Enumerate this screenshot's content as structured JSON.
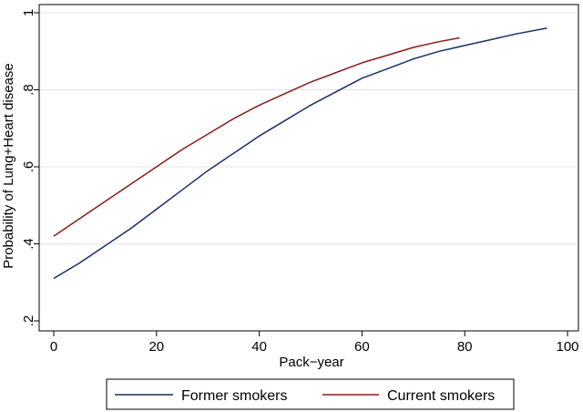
{
  "chart_data": {
    "type": "line",
    "title": "",
    "xlabel": "Pack−year",
    "ylabel": "Probability of Lung+Heart disease",
    "xlim": [
      0,
      100
    ],
    "ylim": [
      0.2,
      1.0
    ],
    "xticks": [
      0,
      20,
      40,
      60,
      80,
      100
    ],
    "yticks": [
      0.2,
      0.4,
      0.6,
      0.8,
      1.0
    ],
    "xtick_labels": [
      "0",
      "20",
      "40",
      "60",
      "80",
      "100"
    ],
    "ytick_labels": [
      ".2",
      ".4",
      ".6",
      ".8",
      "1"
    ],
    "grid": "horizontal",
    "legend_position": "bottom",
    "series": [
      {
        "name": "Former smokers",
        "color": "#1a2d6b",
        "points": [
          [
            0,
            0.31
          ],
          [
            5,
            0.35
          ],
          [
            10,
            0.395
          ],
          [
            15,
            0.44
          ],
          [
            20,
            0.49
          ],
          [
            25,
            0.54
          ],
          [
            30,
            0.59
          ],
          [
            35,
            0.635
          ],
          [
            40,
            0.68
          ],
          [
            45,
            0.72
          ],
          [
            50,
            0.76
          ],
          [
            55,
            0.795
          ],
          [
            60,
            0.83
          ],
          [
            65,
            0.855
          ],
          [
            70,
            0.88
          ],
          [
            75,
            0.9
          ],
          [
            80,
            0.915
          ],
          [
            85,
            0.93
          ],
          [
            90,
            0.945
          ],
          [
            96,
            0.96
          ]
        ]
      },
      {
        "name": "Current smokers",
        "color": "#8b1a1a",
        "points": [
          [
            0,
            0.42
          ],
          [
            5,
            0.465
          ],
          [
            10,
            0.51
          ],
          [
            15,
            0.555
          ],
          [
            20,
            0.6
          ],
          [
            25,
            0.645
          ],
          [
            30,
            0.685
          ],
          [
            35,
            0.725
          ],
          [
            40,
            0.76
          ],
          [
            45,
            0.79
          ],
          [
            50,
            0.82
          ],
          [
            55,
            0.845
          ],
          [
            60,
            0.87
          ],
          [
            65,
            0.89
          ],
          [
            70,
            0.91
          ],
          [
            75,
            0.925
          ],
          [
            79,
            0.935
          ]
        ]
      }
    ]
  }
}
